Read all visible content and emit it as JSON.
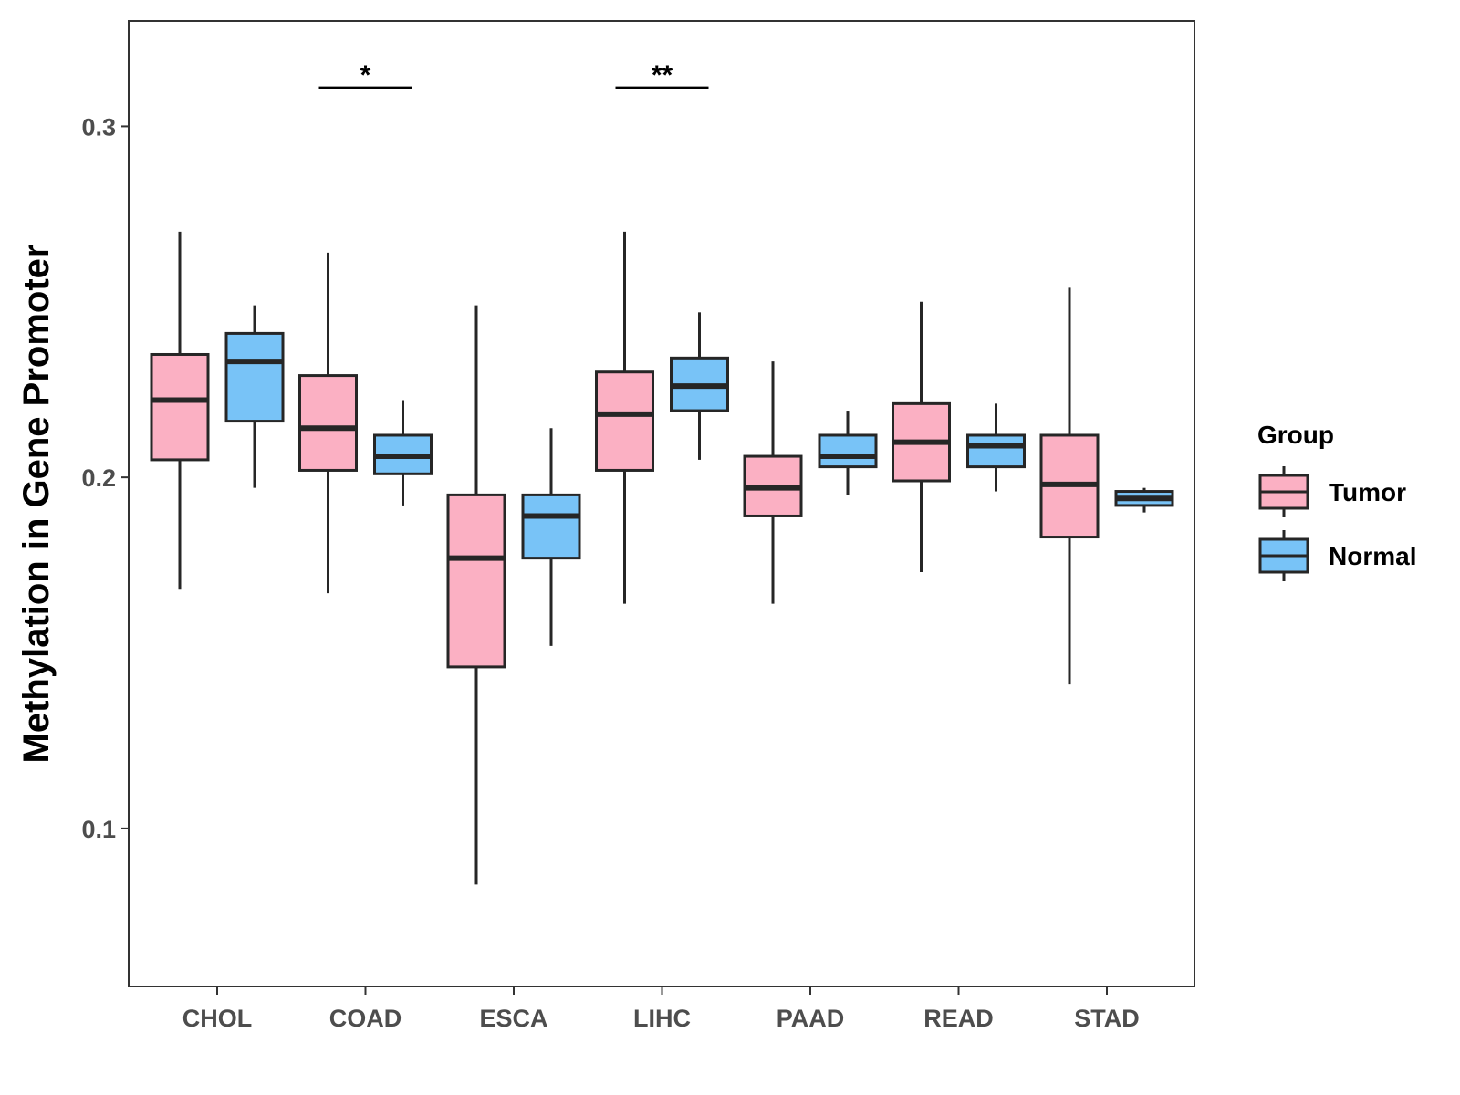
{
  "chart_data": {
    "type": "box",
    "title": "",
    "xlabel": "",
    "ylabel": "Methylation in Gene Promoter",
    "ylim": [
      0.055,
      0.33
    ],
    "yticks": [
      0.1,
      0.2,
      0.3
    ],
    "ytick_labels": [
      "0.1",
      "0.2",
      "0.3"
    ],
    "grid": false,
    "categories": [
      "CHOL",
      "COAD",
      "ESCA",
      "LIHC",
      "PAAD",
      "READ",
      "STAD"
    ],
    "legend": {
      "title": "Group",
      "position": "right",
      "entries": [
        "Tumor",
        "Normal"
      ]
    },
    "colors": {
      "Tumor": "#fbb0c3",
      "Normal": "#78c3f7",
      "outline": "#262626"
    },
    "series": [
      {
        "name": "Tumor",
        "boxes": [
          {
            "category": "CHOL",
            "min": 0.168,
            "q1": 0.205,
            "median": 0.222,
            "q3": 0.235,
            "max": 0.27
          },
          {
            "category": "COAD",
            "min": 0.167,
            "q1": 0.202,
            "median": 0.214,
            "q3": 0.229,
            "max": 0.264
          },
          {
            "category": "ESCA",
            "min": 0.084,
            "q1": 0.146,
            "median": 0.177,
            "q3": 0.195,
            "max": 0.249
          },
          {
            "category": "LIHC",
            "min": 0.164,
            "q1": 0.202,
            "median": 0.218,
            "q3": 0.23,
            "max": 0.27
          },
          {
            "category": "PAAD",
            "min": 0.164,
            "q1": 0.189,
            "median": 0.197,
            "q3": 0.206,
            "max": 0.233
          },
          {
            "category": "READ",
            "min": 0.173,
            "q1": 0.199,
            "median": 0.21,
            "q3": 0.221,
            "max": 0.25
          },
          {
            "category": "STAD",
            "min": 0.141,
            "q1": 0.183,
            "median": 0.198,
            "q3": 0.212,
            "max": 0.254
          }
        ]
      },
      {
        "name": "Normal",
        "boxes": [
          {
            "category": "CHOL",
            "min": 0.197,
            "q1": 0.216,
            "median": 0.233,
            "q3": 0.241,
            "max": 0.249
          },
          {
            "category": "COAD",
            "min": 0.192,
            "q1": 0.201,
            "median": 0.206,
            "q3": 0.212,
            "max": 0.222
          },
          {
            "category": "ESCA",
            "min": 0.152,
            "q1": 0.177,
            "median": 0.189,
            "q3": 0.195,
            "max": 0.214
          },
          {
            "category": "LIHC",
            "min": 0.205,
            "q1": 0.219,
            "median": 0.226,
            "q3": 0.234,
            "max": 0.247
          },
          {
            "category": "PAAD",
            "min": 0.195,
            "q1": 0.203,
            "median": 0.206,
            "q3": 0.212,
            "max": 0.219
          },
          {
            "category": "READ",
            "min": 0.196,
            "q1": 0.203,
            "median": 0.209,
            "q3": 0.212,
            "max": 0.221
          },
          {
            "category": "STAD",
            "min": 0.19,
            "q1": 0.192,
            "median": 0.194,
            "q3": 0.196,
            "max": 0.197
          }
        ]
      }
    ],
    "annotations": [
      {
        "category": "COAD",
        "label": "*",
        "y": 0.311
      },
      {
        "category": "LIHC",
        "label": "**",
        "y": 0.311
      }
    ]
  }
}
